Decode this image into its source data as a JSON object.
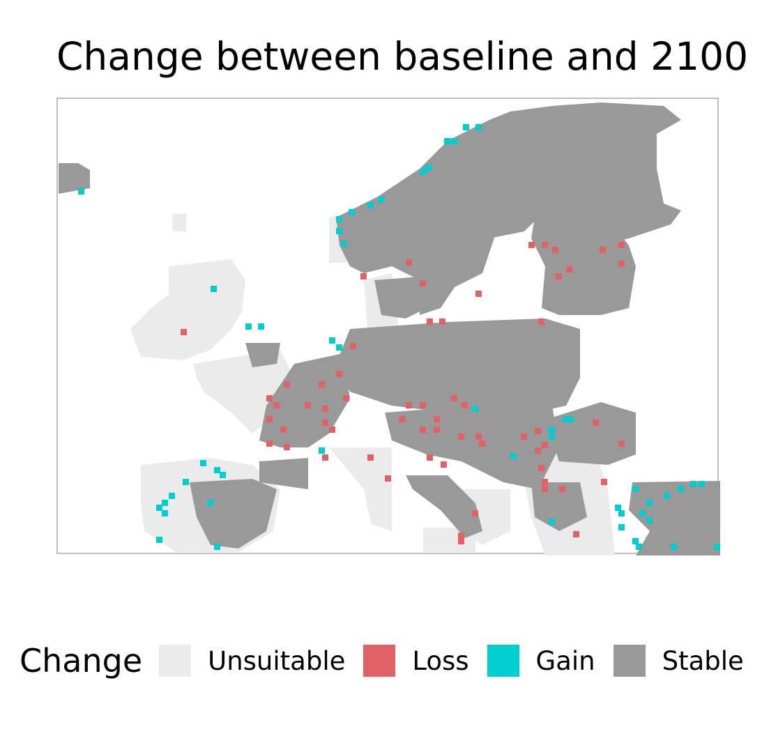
{
  "title": "Change between baseline and 2100",
  "legend": {
    "title": "Change",
    "items": [
      {
        "label": "Unsuitable",
        "color": "#ebebeb"
      },
      {
        "label": "Loss",
        "color": "#e06166"
      },
      {
        "label": "Gain",
        "color": "#00cdd0"
      },
      {
        "label": "Stable",
        "color": "#999999"
      }
    ]
  },
  "colors": {
    "unsuitable": "#ebebeb",
    "loss": "#e06166",
    "gain": "#00cdd0",
    "stable": "#999999",
    "panel_border": "#bdbdbd"
  }
}
